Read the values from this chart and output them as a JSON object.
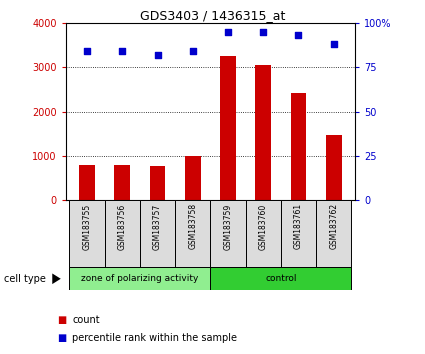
{
  "title": "GDS3403 / 1436315_at",
  "samples": [
    "GSM183755",
    "GSM183756",
    "GSM183757",
    "GSM183758",
    "GSM183759",
    "GSM183760",
    "GSM183761",
    "GSM183762"
  ],
  "counts": [
    780,
    780,
    770,
    1000,
    3250,
    3060,
    2420,
    1470
  ],
  "percentile_ranks": [
    84,
    84,
    82,
    84,
    95,
    95,
    93,
    88
  ],
  "ylim_left": [
    0,
    4000
  ],
  "ylim_right": [
    0,
    100
  ],
  "yticks_left": [
    0,
    1000,
    2000,
    3000,
    4000
  ],
  "yticks_right": [
    0,
    25,
    50,
    75,
    100
  ],
  "ytick_labels_right": [
    "0",
    "25",
    "50",
    "75",
    "100%"
  ],
  "group1_label": "zone of polarizing activity",
  "group2_label": "control",
  "group1_indices": [
    0,
    1,
    2,
    3
  ],
  "group2_indices": [
    4,
    5,
    6,
    7
  ],
  "group1_color": "#90EE90",
  "group2_color": "#32CD32",
  "bar_color": "#CC0000",
  "scatter_color": "#0000CC",
  "bg_color": "#DCDCDC",
  "cell_type_label": "cell type",
  "legend_count_label": "count",
  "legend_pct_label": "percentile rank within the sample",
  "left_tick_color": "#CC0000",
  "right_tick_color": "#0000CC",
  "title_fontsize": 9,
  "axis_fontsize": 7,
  "label_fontsize": 7,
  "legend_fontsize": 7
}
